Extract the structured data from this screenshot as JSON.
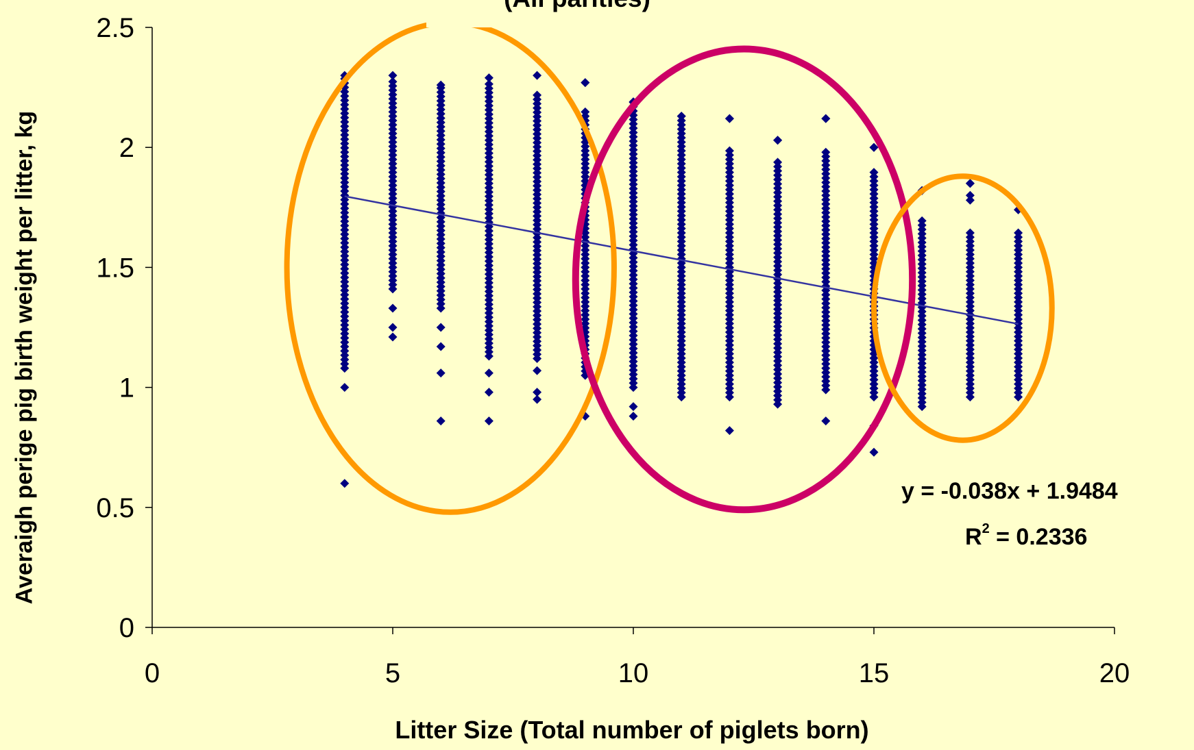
{
  "chart_data": {
    "type": "scatter",
    "title": "(All parities)",
    "xlabel": "Litter Size (Total number of piglets born)",
    "ylabel": "Averaigh perige pig birth weight per litter, kg",
    "xlim": [
      0,
      20
    ],
    "ylim": [
      0,
      2.5
    ],
    "x_ticks": [
      "0",
      "5",
      "10",
      "15",
      "20"
    ],
    "y_ticks": [
      "0",
      "0.5",
      "1",
      "1.5",
      "2",
      "2.5"
    ],
    "grid": false,
    "marker": "diamond",
    "series": [
      {
        "points_by_x": [
          {
            "x": 4,
            "min": 0.6,
            "max": 2.3,
            "dense_from": 1.08,
            "dense_to": 2.29,
            "outliers": [
              1.0,
              0.6
            ]
          },
          {
            "x": 5,
            "min": 1.21,
            "max": 2.3,
            "dense_from": 1.41,
            "dense_to": 2.29,
            "outliers": [
              1.33,
              1.25,
              1.21
            ]
          },
          {
            "x": 6,
            "min": 0.86,
            "max": 2.26,
            "dense_from": 1.33,
            "dense_to": 2.25,
            "outliers": [
              1.25,
              1.17,
              1.06,
              0.86
            ]
          },
          {
            "x": 7,
            "min": 0.86,
            "max": 2.29,
            "dense_from": 1.13,
            "dense_to": 2.28,
            "outliers": [
              1.06,
              0.98,
              0.86
            ]
          },
          {
            "x": 8,
            "min": 0.95,
            "max": 2.3,
            "dense_from": 1.12,
            "dense_to": 2.22,
            "outliers": [
              1.07,
              0.98,
              0.95
            ]
          },
          {
            "x": 9,
            "min": 0.88,
            "max": 2.27,
            "dense_from": 1.05,
            "dense_to": 2.15,
            "outliers": [
              0.88,
              2.27
            ]
          },
          {
            "x": 10,
            "min": 0.88,
            "max": 2.19,
            "dense_from": 1.0,
            "dense_to": 2.19,
            "outliers": [
              0.92,
              0.88
            ]
          },
          {
            "x": 11,
            "min": 0.96,
            "max": 2.13,
            "dense_from": 0.96,
            "dense_to": 2.13,
            "outliers": []
          },
          {
            "x": 12,
            "min": 0.82,
            "max": 2.12,
            "dense_from": 0.96,
            "dense_to": 2.0,
            "outliers": [
              2.12,
              0.82
            ]
          },
          {
            "x": 13,
            "min": 0.93,
            "max": 2.03,
            "dense_from": 0.93,
            "dense_to": 1.95,
            "outliers": [
              2.03
            ]
          },
          {
            "x": 14,
            "min": 0.86,
            "max": 2.12,
            "dense_from": 0.99,
            "dense_to": 1.98,
            "outliers": [
              2.12,
              0.86
            ]
          },
          {
            "x": 15,
            "min": 0.73,
            "max": 2.0,
            "dense_from": 0.96,
            "dense_to": 1.9,
            "outliers": [
              2.0,
              0.84,
              0.73
            ]
          },
          {
            "x": 16,
            "min": 0.92,
            "max": 1.82,
            "dense_from": 0.92,
            "dense_to": 1.7,
            "outliers": [
              1.82
            ]
          },
          {
            "x": 17,
            "min": 0.96,
            "max": 1.85,
            "dense_from": 0.96,
            "dense_to": 1.65,
            "outliers": [
              1.85,
              1.8,
              1.78
            ]
          },
          {
            "x": 18,
            "min": 0.96,
            "max": 1.74,
            "dense_from": 0.96,
            "dense_to": 1.65,
            "outliers": [
              1.74
            ]
          }
        ]
      }
    ],
    "trendline": {
      "slope": -0.038,
      "intercept": 1.9484,
      "x_start": 4,
      "x_end": 18
    },
    "annotations": {
      "equation": "y = -0.038x + 1.9484",
      "r2_label": "R",
      "r2_sup": "2",
      "r2_value": " = 0.2336"
    },
    "highlight_ellipses": [
      {
        "color": "orange",
        "cx": 6.2,
        "cy": 1.5,
        "rx": 3.4,
        "ry": 1.02
      },
      {
        "color": "crimson",
        "cx": 12.3,
        "cy": 1.45,
        "rx": 3.5,
        "ry": 0.96
      },
      {
        "color": "orange",
        "cx": 16.85,
        "cy": 1.33,
        "rx": 1.85,
        "ry": 0.55
      }
    ]
  },
  "colors": {
    "background": "#ffffcc",
    "points": "#000080",
    "trendline": "#3333a0",
    "axis": "#000000",
    "orange": "#ff9900",
    "crimson": "#cc0066"
  }
}
